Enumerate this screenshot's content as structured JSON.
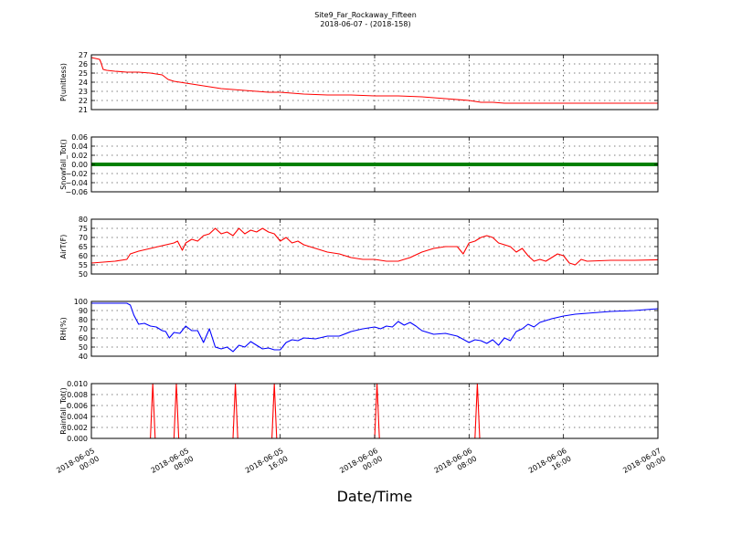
{
  "title": "Site9_Far_Rockaway_Fifteen",
  "subtitle": "2018-06-07 - (2018-158)",
  "xlabel": "Date/Time",
  "x_ticks": [
    {
      "l1": "2018-06-05",
      "l2": "00:00",
      "h": 0
    },
    {
      "l1": "2018-06-05",
      "l2": "08:00",
      "h": 8
    },
    {
      "l1": "2018-06-05",
      "l2": "16:00",
      "h": 16
    },
    {
      "l1": "2018-06-06",
      "l2": "00:00",
      "h": 24
    },
    {
      "l1": "2018-06-06",
      "l2": "08:00",
      "h": 32
    },
    {
      "l1": "2018-06-06",
      "l2": "16:00",
      "h": 40
    },
    {
      "l1": "2018-06-07",
      "l2": "00:00",
      "h": 48
    }
  ],
  "colors": {
    "pressure": "#ff0000",
    "snowfall": "#008000",
    "airtemp": "#ff0000",
    "rh": "#0000ff",
    "rainfall": "#ff0000"
  },
  "chart_data": [
    {
      "type": "line",
      "ylabel": "P(unitless)",
      "ylim": [
        21,
        27
      ],
      "yticks": [
        "21",
        "22",
        "23",
        "24",
        "25",
        "26",
        "27"
      ],
      "color": "#ff0000",
      "grid": true,
      "x_hours": [
        0,
        0.7,
        0.8,
        1.0,
        1.3,
        2,
        3,
        4,
        5,
        5.5,
        6,
        6.5,
        7,
        7.5,
        8,
        9,
        10,
        11,
        12,
        13,
        14,
        15,
        16,
        17,
        18,
        20,
        22,
        24,
        26,
        28,
        30,
        32,
        32.5,
        33,
        34,
        35,
        36,
        38,
        40,
        44,
        48
      ],
      "values": [
        26.7,
        26.5,
        26.2,
        25.4,
        25.3,
        25.2,
        25.1,
        25.1,
        25.0,
        24.9,
        24.8,
        24.3,
        24.1,
        24.0,
        23.9,
        23.7,
        23.5,
        23.3,
        23.2,
        23.1,
        23.0,
        22.9,
        22.9,
        22.8,
        22.7,
        22.6,
        22.6,
        22.5,
        22.5,
        22.4,
        22.2,
        22.0,
        21.9,
        21.8,
        21.8,
        21.7,
        21.7,
        21.7,
        21.7,
        21.7,
        21.7
      ]
    },
    {
      "type": "line",
      "ylabel": "Snowfall_Tot()",
      "ylim": [
        -0.06,
        0.06
      ],
      "yticks": [
        "−0.06",
        "−0.04",
        "−0.02",
        "0.00",
        "0.02",
        "0.04",
        "0.06"
      ],
      "color": "#008000",
      "grid": true,
      "x_hours": [
        0,
        48
      ],
      "values": [
        0,
        0
      ]
    },
    {
      "type": "line",
      "ylabel": "AirT(F)",
      "ylim": [
        50,
        80
      ],
      "yticks": [
        "50",
        "55",
        "60",
        "65",
        "70",
        "75",
        "80"
      ],
      "color": "#ff0000",
      "grid": true,
      "x_hours": [
        0,
        1,
        2,
        3,
        3.3,
        4,
        5,
        6,
        7,
        7.3,
        7.7,
        8,
        8.5,
        9,
        9.5,
        10,
        10.5,
        11,
        11.5,
        12,
        12.5,
        13,
        13.5,
        14,
        14.5,
        15,
        15.5,
        16,
        16.5,
        17,
        17.5,
        18,
        19,
        20,
        21,
        22,
        23,
        24,
        25,
        26,
        27,
        28,
        29,
        30,
        31,
        31.5,
        32,
        32.5,
        33,
        33.5,
        34,
        34.5,
        35,
        35.5,
        36,
        36.5,
        37,
        37.5,
        38,
        38.5,
        39,
        39.5,
        40,
        40.5,
        41,
        41.5,
        42,
        44,
        46,
        48
      ],
      "values": [
        56,
        56.5,
        57,
        58,
        61,
        62.5,
        64,
        65.5,
        67,
        68,
        63,
        67,
        69,
        68,
        71,
        72,
        75,
        72,
        73,
        71,
        75,
        72,
        74,
        73,
        75,
        73,
        72,
        68,
        70,
        67,
        68,
        66,
        64,
        62,
        61,
        59,
        58,
        58,
        57,
        57,
        59,
        62,
        64,
        65,
        65,
        61,
        67,
        68,
        70,
        71,
        70,
        67,
        66,
        65,
        62,
        64,
        60,
        57,
        58,
        57,
        59,
        61,
        60,
        56,
        55,
        58,
        57,
        57.5,
        57.5,
        57.8
      ]
    },
    {
      "type": "line",
      "ylabel": "RH(%)",
      "ylim": [
        40,
        100
      ],
      "yticks": [
        "40",
        "50",
        "60",
        "70",
        "80",
        "90",
        "100"
      ],
      "color": "#0000ff",
      "grid": true,
      "x_hours": [
        0,
        2,
        3,
        3.3,
        3.6,
        4,
        4.5,
        5,
        5.5,
        6,
        6.3,
        6.6,
        7,
        7.5,
        8,
        8.5,
        9,
        9.5,
        10,
        10.5,
        11,
        11.5,
        12,
        12.5,
        13,
        13.5,
        14,
        14.5,
        15,
        15.5,
        16,
        16.5,
        17,
        17.5,
        18,
        19,
        20,
        21,
        22,
        23,
        24,
        24.5,
        25,
        25.5,
        26,
        26.5,
        27,
        27.5,
        28,
        29,
        30,
        31,
        32,
        32.5,
        33,
        33.5,
        34,
        34.5,
        35,
        35.5,
        36,
        36.5,
        37,
        37.5,
        38,
        38.5,
        39,
        40,
        41,
        42,
        43,
        44,
        46,
        48
      ],
      "values": [
        98,
        98,
        98,
        96,
        85,
        75,
        76,
        73,
        72,
        68,
        67,
        60,
        66,
        65,
        73,
        68,
        68,
        55,
        70,
        50,
        48,
        50,
        45,
        52,
        50,
        56,
        52,
        48,
        49,
        47,
        47,
        55,
        58,
        57,
        60,
        59,
        62,
        62,
        67,
        70,
        72,
        70,
        73,
        72,
        78,
        74,
        77,
        73,
        68,
        64,
        65,
        62,
        55,
        58,
        57,
        54,
        58,
        52,
        60,
        57,
        67,
        70,
        75,
        72,
        77,
        79,
        81,
        84,
        86,
        87,
        88,
        89,
        90,
        92
      ]
    },
    {
      "type": "line",
      "ylabel": "Rainfall_Tot()",
      "ylim": [
        0,
        0.01
      ],
      "yticks": [
        "0.000",
        "0.002",
        "0.004",
        "0.006",
        "0.008",
        "0.010"
      ],
      "color": "#ff0000",
      "grid": true,
      "x_hours": [
        0,
        5,
        5.2,
        5.4,
        7,
        7.2,
        7.4,
        12,
        12.2,
        12.4,
        15.3,
        15.5,
        15.7,
        24,
        24.2,
        24.4,
        32.5,
        32.7,
        32.9,
        48
      ],
      "values": [
        0,
        0,
        0.01,
        0,
        0,
        0.01,
        0,
        0,
        0.01,
        0,
        0,
        0.01,
        0,
        0,
        0.01,
        0,
        0,
        0.01,
        0,
        0
      ]
    }
  ]
}
